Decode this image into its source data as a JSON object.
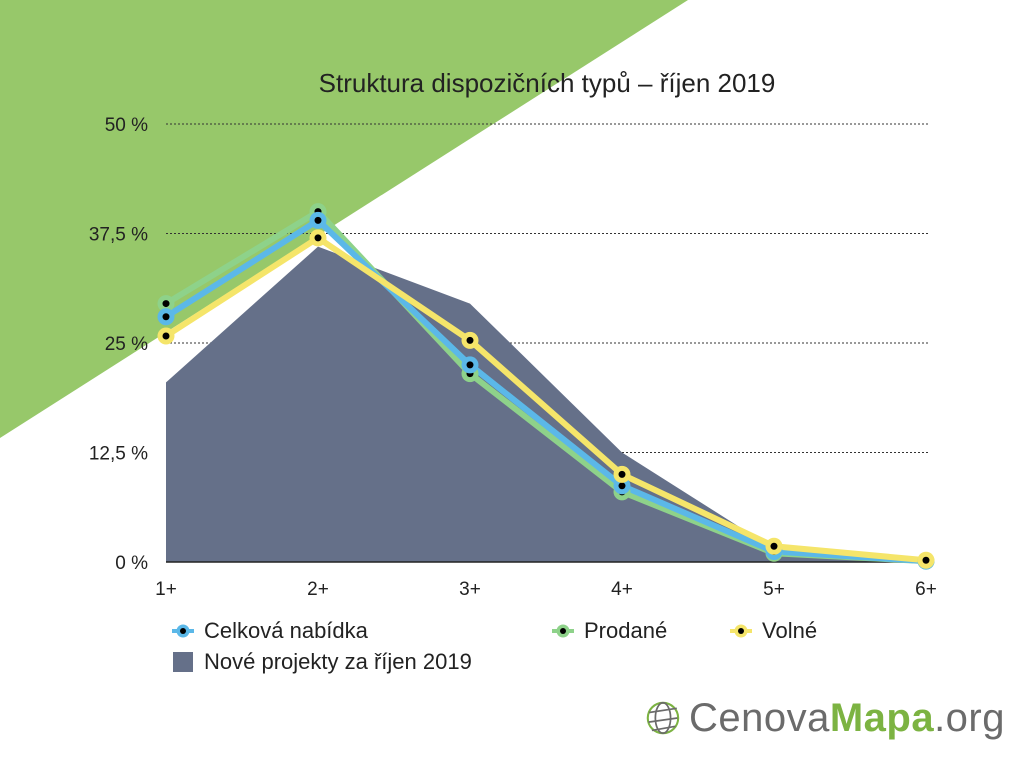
{
  "colors": {
    "background_triangle": "#97c86a",
    "area": "#657089",
    "celkova": "#5bb8e8",
    "prodane": "#8ed28a",
    "volne": "#f5e56a",
    "grid": "#333333",
    "logo_green": "#7cb342",
    "logo_gray": "#6b6b6b"
  },
  "chart_data": {
    "type": "line",
    "title": "Struktura dispozičních typů – říjen 2019",
    "categories": [
      "1+",
      "2+",
      "3+",
      "4+",
      "5+",
      "6+"
    ],
    "yticks": [
      "0 %",
      "12,5 %",
      "25 %",
      "37,5 %",
      "50 %"
    ],
    "ylim": [
      0,
      50
    ],
    "grid": true,
    "area": {
      "name": "Nové projekty za říjen 2019",
      "values": [
        20.5,
        36,
        29.5,
        12.5,
        1.5,
        0
      ]
    },
    "series": [
      {
        "name": "Prodané",
        "key": "prodane",
        "values": [
          29.5,
          40,
          21.5,
          8.0,
          1.0,
          0.1
        ]
      },
      {
        "name": "Celková nabídka",
        "key": "celkova",
        "values": [
          28.0,
          39.0,
          22.5,
          8.7,
          1.2,
          0.1
        ]
      },
      {
        "name": "Volné",
        "key": "volne",
        "values": [
          25.8,
          37.0,
          25.3,
          10.0,
          1.8,
          0.2
        ]
      }
    ],
    "legend": {
      "position": "bottom",
      "items": [
        "Celková nabídka",
        "Prodané",
        "Volné",
        "Nové projekty za říjen 2019"
      ]
    }
  },
  "logo": {
    "part1": "Cenova",
    "part2": "Mapa",
    "part3": ".org"
  }
}
